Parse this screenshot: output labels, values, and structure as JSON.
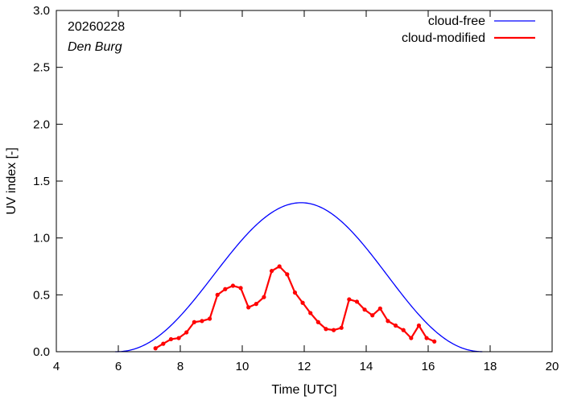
{
  "chart_data": {
    "type": "line",
    "title": "",
    "xlabel": "Time  [UTC]",
    "ylabel": "UV index  [-]",
    "xlim": [
      4,
      20
    ],
    "ylim": [
      0,
      3.0
    ],
    "xticks": [
      4,
      6,
      8,
      10,
      12,
      14,
      16,
      18,
      20
    ],
    "yticks": [
      "0.0",
      "0.5",
      "1.0",
      "1.5",
      "2.0",
      "2.5",
      "3.0"
    ],
    "annotations": {
      "date": "20260228",
      "station": "Den Burg"
    },
    "legend_position": "top-right",
    "colors": {
      "cloud_free": "#0000ff",
      "cloud_modified": "#ff0000"
    },
    "series": [
      {
        "name": "cloud-free",
        "style": "line",
        "peak_time": 11.9,
        "peak_value": 1.31,
        "start_time": 5.9,
        "end_time": 17.8,
        "x": [
          5.9,
          6.5,
          7.0,
          7.5,
          8.0,
          8.5,
          9.0,
          9.5,
          10.0,
          10.5,
          11.0,
          11.5,
          11.9,
          12.5,
          13.0,
          13.5,
          14.0,
          14.5,
          15.0,
          15.5,
          16.0,
          16.5,
          17.0,
          17.5,
          17.8
        ],
        "values": [
          0.0,
          0.02,
          0.05,
          0.1,
          0.17,
          0.27,
          0.4,
          0.55,
          0.73,
          0.92,
          1.1,
          1.25,
          1.31,
          1.27,
          1.16,
          1.0,
          0.82,
          0.63,
          0.46,
          0.31,
          0.19,
          0.1,
          0.04,
          0.01,
          0.0
        ]
      },
      {
        "name": "cloud-modified",
        "style": "line+points",
        "x": [
          7.2,
          7.45,
          7.7,
          7.95,
          8.2,
          8.45,
          8.7,
          8.95,
          9.2,
          9.45,
          9.7,
          9.95,
          10.2,
          10.45,
          10.7,
          10.95,
          11.2,
          11.45,
          11.7,
          11.95,
          12.2,
          12.45,
          12.7,
          12.95,
          13.2,
          13.45,
          13.7,
          13.95,
          14.2,
          14.45,
          14.7,
          14.95,
          15.2,
          15.45,
          15.7,
          15.95,
          16.2
        ],
        "values": [
          0.03,
          0.07,
          0.11,
          0.12,
          0.17,
          0.26,
          0.27,
          0.29,
          0.5,
          0.55,
          0.58,
          0.56,
          0.39,
          0.42,
          0.48,
          0.71,
          0.75,
          0.68,
          0.52,
          0.43,
          0.34,
          0.26,
          0.2,
          0.19,
          0.21,
          0.46,
          0.44,
          0.37,
          0.32,
          0.38,
          0.27,
          0.23,
          0.19,
          0.12,
          0.23,
          0.12,
          0.09
        ]
      }
    ]
  }
}
